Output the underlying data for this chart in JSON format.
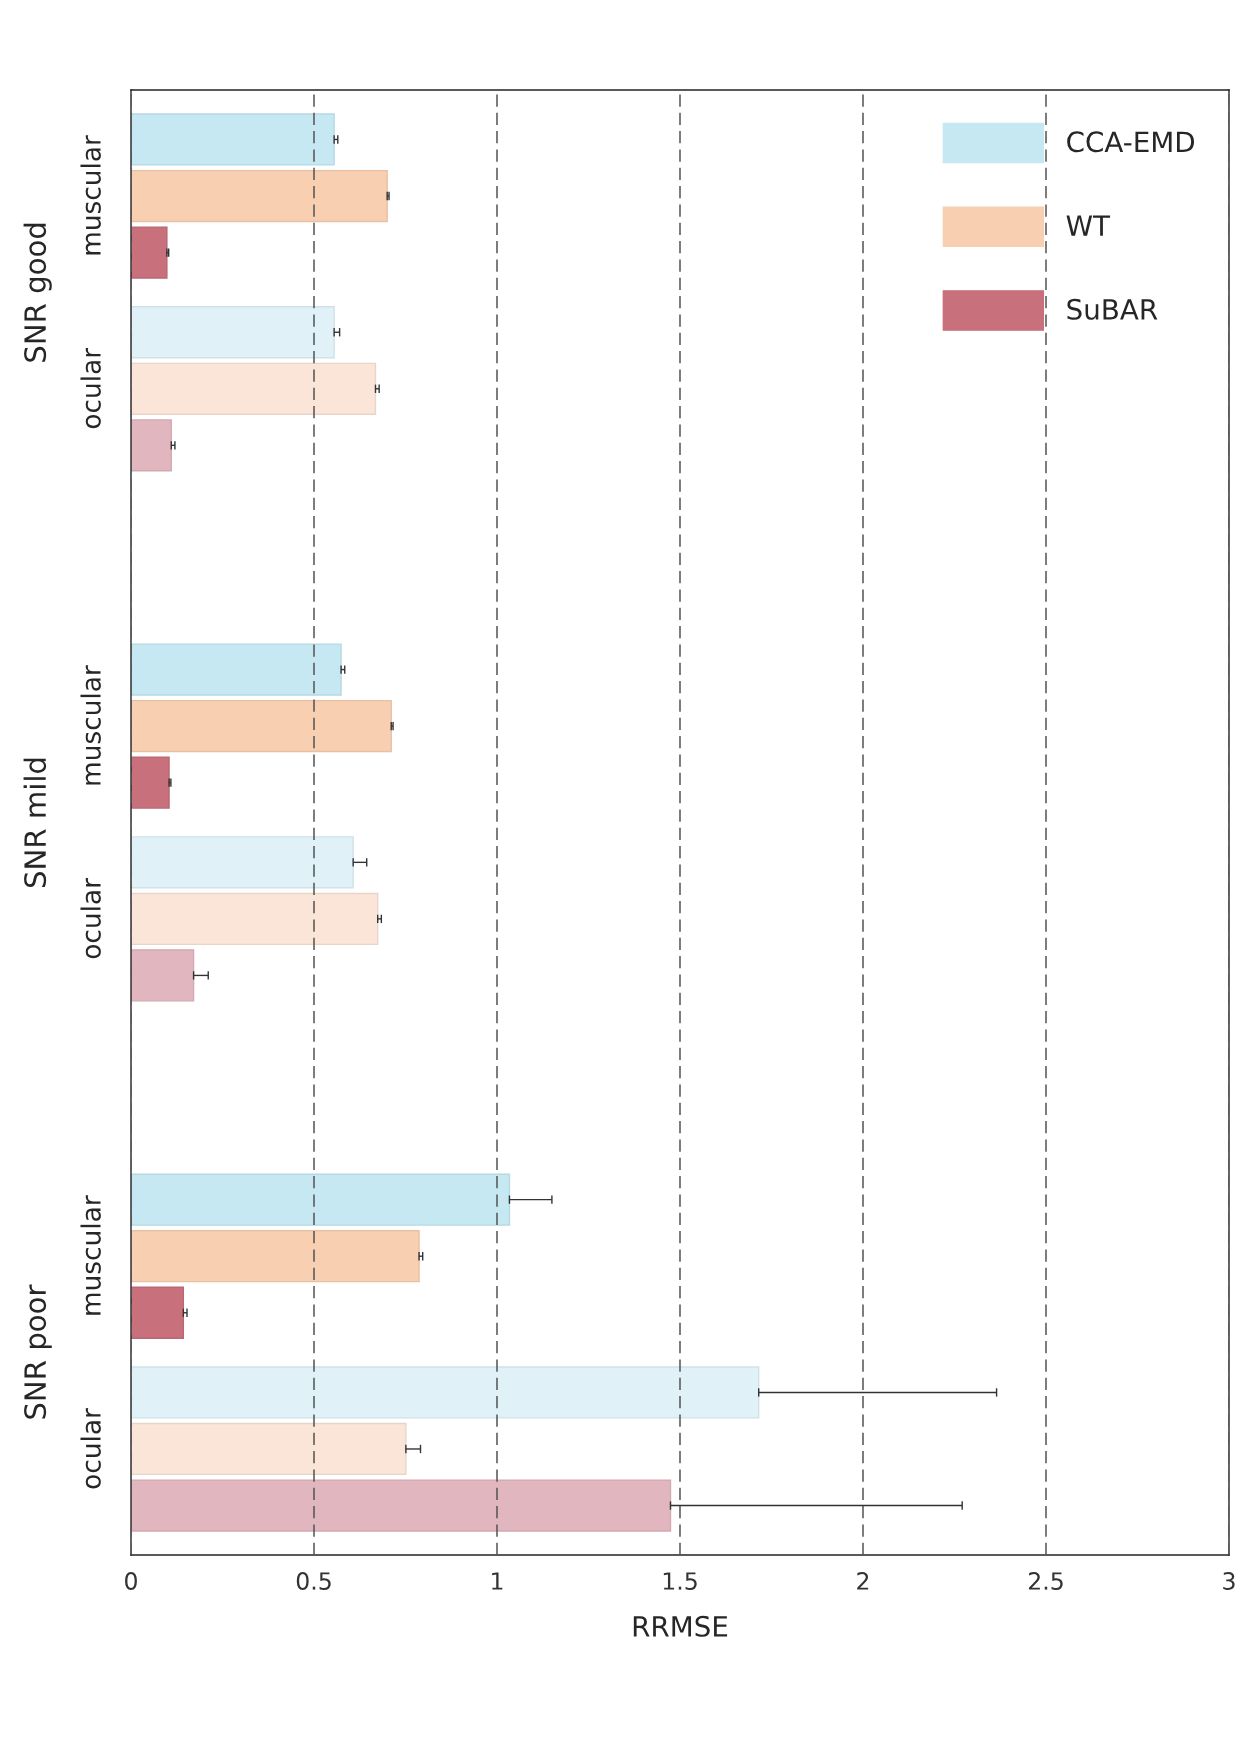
{
  "chart_data": {
    "type": "bar",
    "orientation": "horizontal",
    "xlabel": "RRMSE",
    "categories": [
      "muscular",
      "ocular",
      "muscular",
      "ocular",
      "muscular",
      "ocular"
    ],
    "annotations": [
      "SNR good",
      "SNR mild",
      "SNR poor"
    ],
    "series": [
      {
        "name": "CCA-EMD",
        "color": "#c5e8f2",
        "colors": [
          "#c5e8f2",
          "#e0f2f8",
          "#c5e8f2",
          "#e0f2f8",
          "#c5e8f2",
          "#e0f2f8"
        ],
        "values": [
          0.555,
          0.555,
          0.574,
          0.607,
          1.034,
          1.715
        ],
        "errors": [
          [
            0.555,
            0.565
          ],
          [
            0.555,
            0.57
          ],
          [
            0.574,
            0.584
          ],
          [
            0.607,
            0.644
          ],
          [
            1.034,
            1.15
          ],
          [
            1.715,
            2.365
          ]
        ]
      },
      {
        "name": "WT",
        "color": "#f8cfb0",
        "colors": [
          "#f8cfb0",
          "#fae5d8",
          "#f8cfb0",
          "#fae5d8",
          "#f8cfb0",
          "#fae5d8"
        ],
        "values": [
          0.7,
          0.668,
          0.711,
          0.674,
          0.787,
          0.751
        ],
        "errors": [
          [
            0.7,
            0.705
          ],
          [
            0.668,
            0.678
          ],
          [
            0.711,
            0.716
          ],
          [
            0.674,
            0.684
          ],
          [
            0.787,
            0.797
          ],
          [
            0.751,
            0.791
          ]
        ]
      },
      {
        "name": "SuBAR",
        "color": "#c8707c",
        "colors": [
          "#c8707c",
          "#e2b6be",
          "#c8707c",
          "#e2b6be",
          "#c8707c",
          "#e2b6be"
        ],
        "values": [
          0.098,
          0.11,
          0.104,
          0.171,
          0.143,
          1.474
        ],
        "errors": [
          [
            0.098,
            0.103
          ],
          [
            0.11,
            0.12
          ],
          [
            0.104,
            0.109
          ],
          [
            0.171,
            0.211
          ],
          [
            0.143,
            0.153
          ],
          [
            1.474,
            2.271
          ]
        ]
      }
    ],
    "xlim": [
      0,
      3
    ],
    "xticks": [
      0,
      0.5,
      1,
      1.5,
      2,
      2.5,
      3
    ],
    "grid": "x",
    "line_style": "dashed",
    "legend": "top right"
  }
}
